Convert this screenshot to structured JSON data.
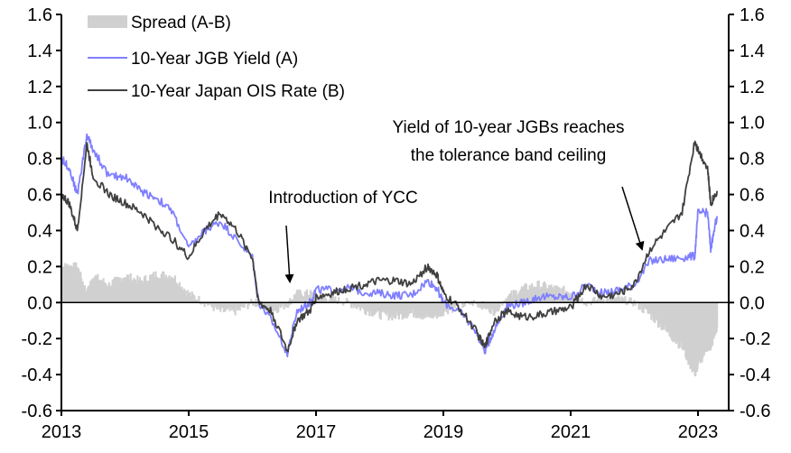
{
  "chart_data": {
    "type": "line",
    "title": "",
    "xlabel": "",
    "ylabel": "",
    "xlim": [
      2013,
      2023.6
    ],
    "ylim": [
      -0.6,
      1.6
    ],
    "y_ticks": [
      "1.6",
      "1.4",
      "1.2",
      "1.0",
      "0.8",
      "0.6",
      "0.4",
      "0.2",
      "0.0",
      "-0.2",
      "-0.4",
      "-0.6"
    ],
    "y_tick_values": [
      1.6,
      1.4,
      1.2,
      1.0,
      0.8,
      0.6,
      0.4,
      0.2,
      0.0,
      -0.2,
      -0.4,
      -0.6
    ],
    "x_ticks": [
      "2013",
      "2015",
      "2017",
      "2019",
      "2021",
      "2023"
    ],
    "x_tick_values": [
      2013,
      2015,
      2017,
      2019,
      2021,
      2023
    ],
    "legend_position": "top-left",
    "x": [
      2013.0,
      2013.12,
      2013.25,
      2013.4,
      2013.5,
      2013.75,
      2014.0,
      2014.25,
      2014.5,
      2014.75,
      2015.0,
      2015.25,
      2015.5,
      2015.75,
      2016.0,
      2016.1,
      2016.3,
      2016.55,
      2016.7,
      2016.9,
      2017.0,
      2017.25,
      2017.5,
      2017.75,
      2018.0,
      2018.25,
      2018.5,
      2018.75,
      2018.9,
      2019.0,
      2019.25,
      2019.5,
      2019.65,
      2019.8,
      2020.0,
      2020.25,
      2020.5,
      2020.75,
      2021.0,
      2021.25,
      2021.5,
      2021.75,
      2022.0,
      2022.25,
      2022.5,
      2022.75,
      2022.95,
      2023.0,
      2023.15,
      2023.2,
      2023.3
    ],
    "series": [
      {
        "name": "Spread (A-B)",
        "kind": "area",
        "color": "#d0d0d0",
        "values": [
          0.2,
          0.2,
          0.2,
          0.05,
          0.15,
          0.1,
          0.15,
          0.12,
          0.16,
          0.15,
          0.05,
          0.0,
          -0.05,
          -0.05,
          0.0,
          0.0,
          -0.05,
          -0.01,
          0.05,
          0.05,
          0.04,
          0.02,
          0.0,
          -0.04,
          -0.07,
          -0.08,
          -0.06,
          -0.08,
          -0.07,
          -0.05,
          -0.02,
          0.0,
          -0.02,
          -0.05,
          0.03,
          0.08,
          0.1,
          0.08,
          0.06,
          0.0,
          0.02,
          0.02,
          0.0,
          -0.07,
          -0.16,
          -0.25,
          -0.4,
          -0.35,
          -0.25,
          -0.25,
          -0.14
        ]
      },
      {
        "name": "10-Year JGB Yield (A)",
        "kind": "line",
        "color": "#7f7fff",
        "values": [
          0.8,
          0.75,
          0.6,
          0.93,
          0.85,
          0.7,
          0.7,
          0.62,
          0.58,
          0.5,
          0.3,
          0.4,
          0.45,
          0.35,
          0.25,
          0.0,
          -0.1,
          -0.28,
          -0.05,
          0.0,
          0.07,
          0.07,
          0.08,
          0.06,
          0.05,
          0.04,
          0.04,
          0.12,
          0.08,
          0.0,
          -0.05,
          -0.15,
          -0.27,
          -0.15,
          -0.02,
          0.0,
          0.03,
          0.03,
          0.03,
          0.1,
          0.05,
          0.07,
          0.1,
          0.23,
          0.24,
          0.25,
          0.26,
          0.5,
          0.5,
          0.3,
          0.48
        ]
      },
      {
        "name": "10-Year Japan OIS Rate (B)",
        "kind": "line",
        "color": "#404040",
        "values": [
          0.6,
          0.55,
          0.4,
          0.88,
          0.7,
          0.6,
          0.55,
          0.5,
          0.42,
          0.35,
          0.25,
          0.4,
          0.5,
          0.4,
          0.25,
          0.0,
          -0.05,
          -0.27,
          -0.1,
          -0.05,
          0.03,
          0.05,
          0.08,
          0.1,
          0.12,
          0.12,
          0.1,
          0.2,
          0.15,
          0.05,
          -0.03,
          -0.15,
          -0.25,
          -0.1,
          -0.05,
          -0.08,
          -0.07,
          -0.05,
          -0.03,
          0.1,
          0.03,
          0.05,
          0.1,
          0.3,
          0.4,
          0.5,
          0.9,
          0.85,
          0.75,
          0.55,
          0.62
        ]
      }
    ],
    "annotations": [
      {
        "id": "ycc",
        "lines": [
          "Introduction of YCC"
        ],
        "points_to": [
          2016.6,
          -0.06
        ]
      },
      {
        "id": "ceiling",
        "lines": [
          "Yield of 10-year JGBs reaches",
          "the tolerance band ceiling"
        ],
        "points_to": [
          2022.2,
          0.3
        ]
      }
    ]
  }
}
